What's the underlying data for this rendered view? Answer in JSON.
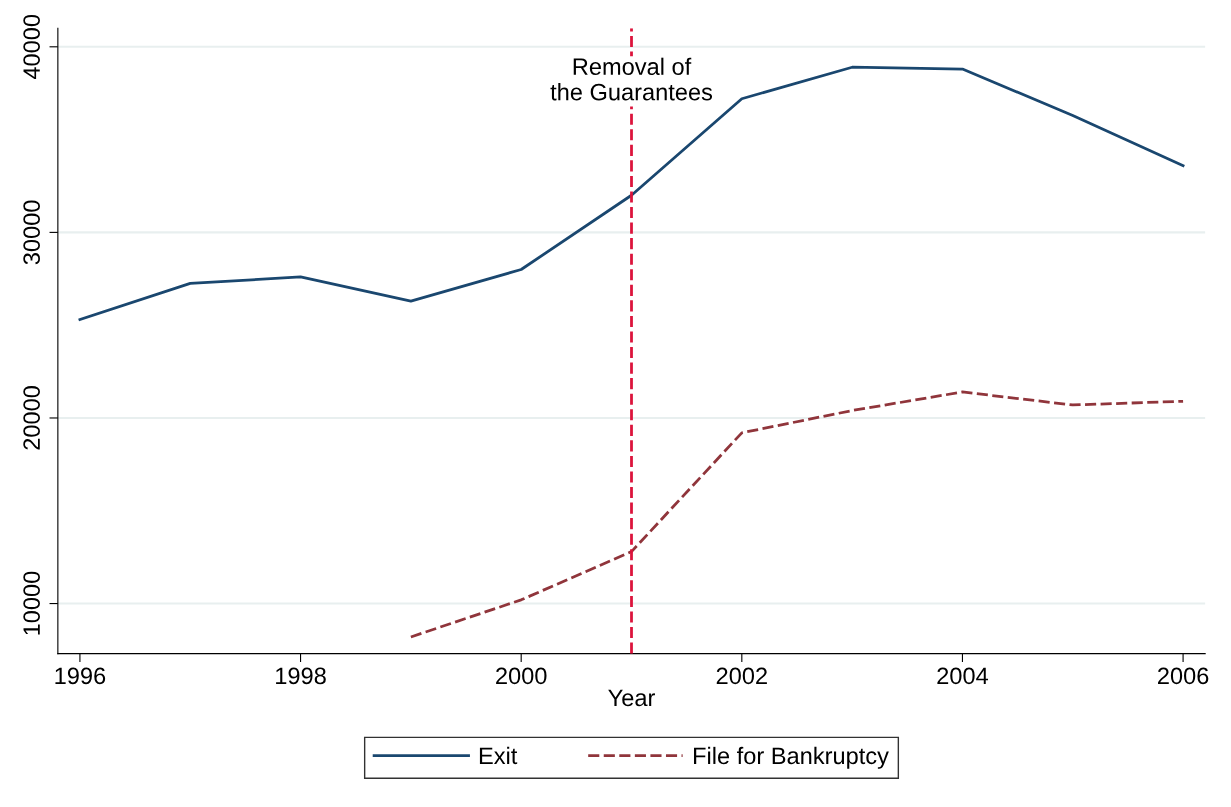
{
  "chart_data": {
    "type": "line",
    "xlabel": "Year",
    "x": [
      1996,
      1997,
      1998,
      1999,
      2000,
      2001,
      2002,
      2003,
      2004,
      2005,
      2006
    ],
    "series": [
      {
        "name": "Exit",
        "color": "#1a476f",
        "line_style": "solid",
        "values": [
          25300,
          27250,
          27600,
          26300,
          28000,
          32000,
          37200,
          38900,
          38800,
          36300,
          33600
        ]
      },
      {
        "name": "File for Bankruptcy",
        "color": "#90353b",
        "line_style": "dashed",
        "values": [
          null,
          null,
          null,
          8200,
          10200,
          12800,
          19200,
          20400,
          21400,
          20700,
          20900
        ]
      }
    ],
    "xlim": [
      1995.8,
      2006.2
    ],
    "xticks": [
      1996,
      1998,
      2000,
      2002,
      2004,
      2006
    ],
    "ylim": [
      7300,
      41000
    ],
    "yticks": [
      10000,
      20000,
      30000,
      40000
    ],
    "ref_lines": [
      {
        "axis": "x",
        "value": 2001,
        "label": "Removal of\nthe Guarantees",
        "color": "#dc143c",
        "line_style": "dashed"
      }
    ],
    "grid": "y",
    "legend": "bottom",
    "marker": "none"
  }
}
